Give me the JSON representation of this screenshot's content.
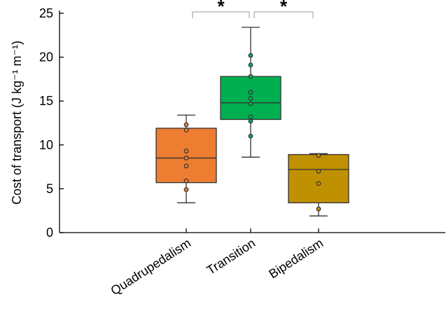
{
  "chart_data": {
    "type": "box",
    "title": "",
    "xlabel": "",
    "ylabel": "Cost of transport (J kg⁻¹ m⁻¹)",
    "ylim": [
      0,
      25
    ],
    "yticks": [
      0,
      5,
      10,
      15,
      20,
      25
    ],
    "grid": false,
    "categories": [
      "Quadrupedalism",
      "Transition",
      "Bipedalism"
    ],
    "boxes": [
      {
        "category": "Quadrupedalism",
        "color": "#ED7D31",
        "whisker_low": 3.4,
        "q1": 5.7,
        "median": 8.5,
        "q3": 11.9,
        "whisker_high": 13.4,
        "points": [
          12.3,
          11.7,
          9.3,
          8.5,
          7.6,
          5.9,
          4.9
        ]
      },
      {
        "category": "Transition",
        "color": "#00B050",
        "whisker_low": 8.6,
        "q1": 12.9,
        "median": 14.8,
        "q3": 17.8,
        "whisker_high": 23.4,
        "points": [
          20.2,
          19.1,
          17.8,
          16.0,
          15.3,
          14.7,
          13.2,
          12.7,
          11.0
        ]
      },
      {
        "category": "Bipedalism",
        "color": "#BF9000",
        "whisker_low": 1.9,
        "q1": 3.4,
        "median": 7.2,
        "q3": 8.9,
        "whisker_high": 9.0,
        "points": [
          8.8,
          7.0,
          5.6,
          2.7
        ]
      }
    ],
    "significance": [
      {
        "from": "Quadrupedalism",
        "to": "Transition",
        "label": "*"
      },
      {
        "from": "Transition",
        "to": "Bipedalism",
        "label": "*"
      }
    ]
  }
}
